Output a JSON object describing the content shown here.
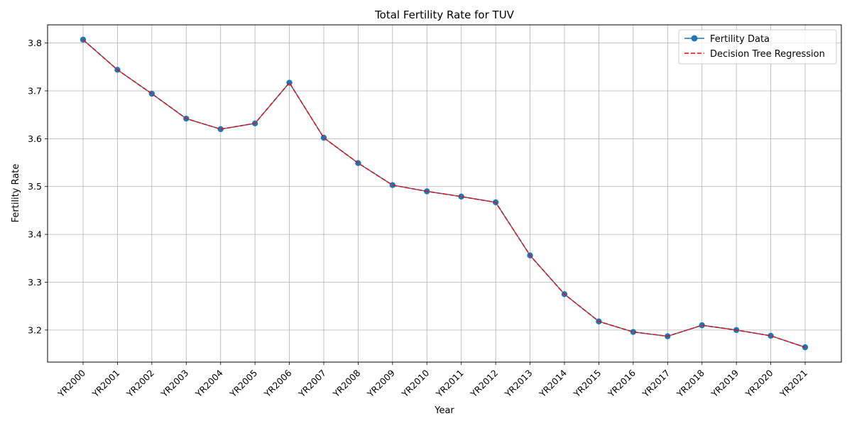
{
  "chart_data": {
    "type": "line",
    "title": "Total Fertility Rate for TUV",
    "xlabel": "Year",
    "ylabel": "Fertility Rate",
    "categories": [
      "YR2000",
      "YR2001",
      "YR2002",
      "YR2003",
      "YR2004",
      "YR2005",
      "YR2006",
      "YR2007",
      "YR2008",
      "YR2009",
      "YR2010",
      "YR2011",
      "YR2012",
      "YR2013",
      "YR2014",
      "YR2015",
      "YR2016",
      "YR2017",
      "YR2018",
      "YR2019",
      "YR2020",
      "YR2021"
    ],
    "yticks": [
      "3.2",
      "3.3",
      "3.4",
      "3.5",
      "3.6",
      "3.7",
      "3.8"
    ],
    "ylim": [
      3.133,
      3.838
    ],
    "grid": true,
    "legend_position": "top-right",
    "series": [
      {
        "name": "Fertility Data",
        "color": "#1f77b4",
        "style": "solid-line-with-circle-markers",
        "values": [
          3.807,
          3.744,
          3.694,
          3.642,
          3.62,
          3.632,
          3.717,
          3.602,
          3.549,
          3.503,
          3.49,
          3.479,
          3.467,
          3.356,
          3.275,
          3.218,
          3.196,
          3.187,
          3.21,
          3.2,
          3.188,
          3.164
        ]
      },
      {
        "name": "Decision Tree Regression",
        "color": "#ff0000",
        "style": "dashed-line",
        "values": [
          3.807,
          3.744,
          3.694,
          3.642,
          3.62,
          3.632,
          3.717,
          3.602,
          3.549,
          3.503,
          3.49,
          3.479,
          3.467,
          3.356,
          3.275,
          3.218,
          3.196,
          3.187,
          3.21,
          3.2,
          3.188,
          3.164
        ]
      }
    ]
  }
}
